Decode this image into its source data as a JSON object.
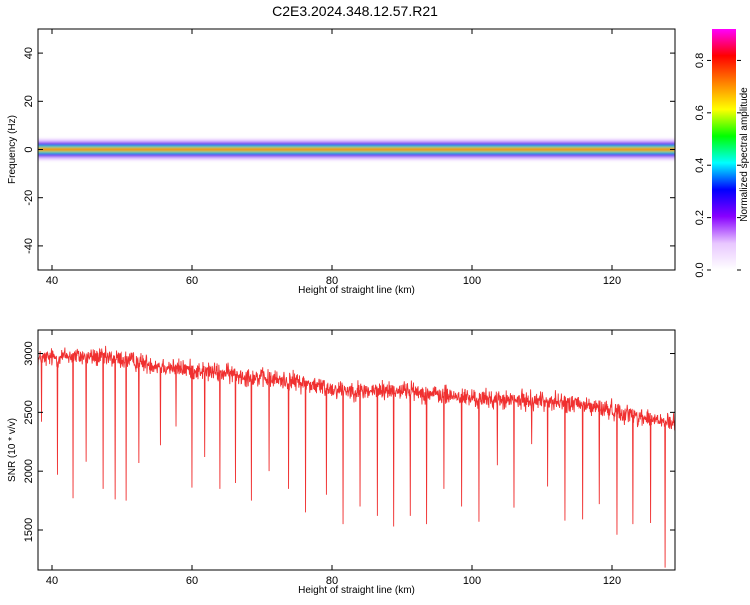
{
  "title": "C2E3.2024.348.12.57.R21",
  "colors": {
    "snr_line": "#f03030",
    "axis": "#000000",
    "background": "#ffffff"
  },
  "chart_data": [
    {
      "type": "heatmap",
      "name": "spectrogram",
      "xlabel": "Height of straight line (km)",
      "ylabel": "Frequency (Hz)",
      "xlim": [
        38,
        129
      ],
      "ylim": [
        -50,
        50
      ],
      "x_ticks": [
        40,
        60,
        80,
        100,
        120
      ],
      "y_ticks": [
        -40,
        -20,
        0,
        20,
        40
      ],
      "x_tick_labels": [
        "40",
        "60",
        "80",
        "100",
        "120"
      ],
      "y_tick_labels": [
        "-40",
        "-20",
        "0",
        "20",
        "40"
      ],
      "grid": false,
      "band_center_hz": 0,
      "band_core_halfwidth_hz": 1,
      "band_halfwidth_hz": 3,
      "band_outer_halfwidth_hz": 4.5,
      "colorbar": {
        "label": "Normalized spectral amplitude",
        "range": [
          0,
          0.92
        ],
        "ticks": [
          0.0,
          0.2,
          0.4,
          0.6,
          0.8
        ],
        "tick_labels": [
          "0.0",
          "0.2",
          "0.4",
          "0.6",
          "0.8"
        ],
        "colormap": [
          "#ffffff",
          "#e8c6ff",
          "#8800ff",
          "#0000ff",
          "#00ffff",
          "#00ff00",
          "#ffff00",
          "#ff8000",
          "#ff0000",
          "#ff00ff"
        ]
      }
    },
    {
      "type": "line",
      "name": "snr",
      "xlabel": "Height of straight line (km)",
      "ylabel": "SNR (10 * v/v)",
      "xlim": [
        38,
        129
      ],
      "ylim": [
        1160,
        3200
      ],
      "x_ticks": [
        40,
        60,
        80,
        100,
        120
      ],
      "y_ticks": [
        1500,
        2000,
        2500,
        3000
      ],
      "x_tick_labels": [
        "40",
        "60",
        "80",
        "100",
        "120"
      ],
      "y_tick_labels": [
        "1500",
        "2000",
        "2500",
        "3000"
      ],
      "grid": false,
      "trend": {
        "x": [
          38,
          42,
          46,
          50,
          55,
          60,
          65,
          70,
          75,
          80,
          85,
          90,
          95,
          100,
          105,
          110,
          115,
          120,
          125,
          129
        ],
        "y": [
          2950,
          2980,
          2970,
          2950,
          2900,
          2860,
          2830,
          2790,
          2760,
          2700,
          2680,
          2690,
          2650,
          2620,
          2600,
          2600,
          2570,
          2520,
          2450,
          2400
        ]
      },
      "noise_amplitude": 120,
      "dips": {
        "x": [
          38.5,
          40.8,
          43,
          44.9,
          47.3,
          49,
          50.6,
          52.4,
          55.5,
          57.7,
          60,
          61.8,
          64,
          66.2,
          68.5,
          71,
          73.8,
          76.2,
          79.2,
          81.6,
          84,
          86.5,
          88.8,
          91.2,
          93.5,
          96,
          98.5,
          101,
          103.6,
          106,
          108.5,
          110.8,
          113.3,
          115.8,
          118.2,
          120.7,
          123,
          125.5,
          127.6
        ],
        "y": [
          2420,
          1970,
          1770,
          2080,
          1850,
          1760,
          1750,
          2070,
          2220,
          2380,
          1860,
          2120,
          1850,
          1900,
          1750,
          2000,
          1850,
          1650,
          1800,
          1550,
          1700,
          1620,
          1530,
          1620,
          1550,
          1850,
          1700,
          1570,
          2050,
          1690,
          2230,
          1870,
          1580,
          1590,
          1720,
          1460,
          1550,
          1560,
          1180
        ]
      }
    }
  ]
}
